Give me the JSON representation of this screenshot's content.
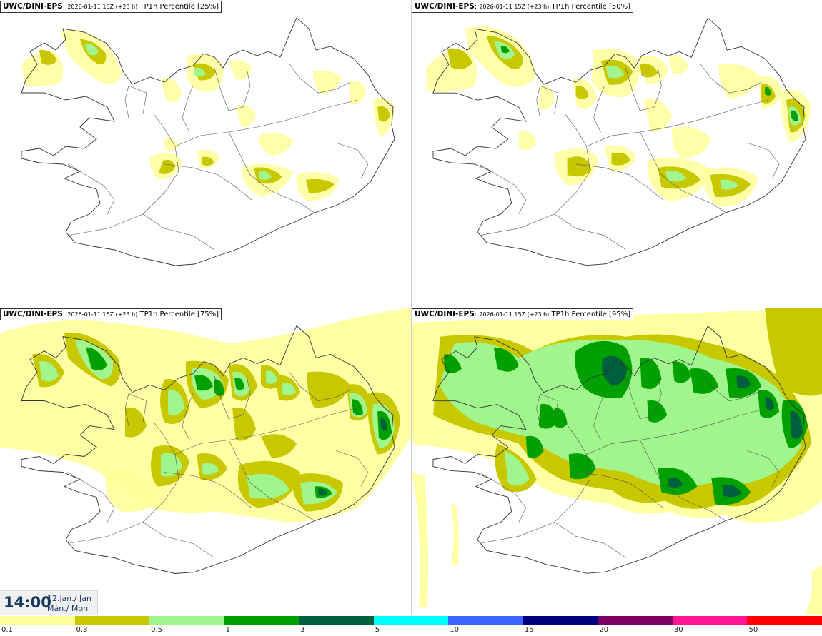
{
  "panels": [
    {
      "model": "UWC/DINI-EPS",
      "run": "2026-01-11 15Z (+23 h)",
      "param": "TP1h Percentile [25%]",
      "percentile": 25
    },
    {
      "model": "UWC/DINI-EPS",
      "run": "2026-01-11 15Z (+23 h)",
      "param": "TP1h Percentile [50%]",
      "percentile": 50
    },
    {
      "model": "UWC/DINI-EPS",
      "run": "2026-01-11 15Z (+23 h)",
      "param": "TP1h Percentile [75%]",
      "percentile": 75
    },
    {
      "model": "UWC/DINI-EPS",
      "run": "2026-01-11 15Z (+23 h)",
      "param": "TP1h Percentile [95%]",
      "percentile": 95
    }
  ],
  "valid_time": {
    "time": "14:00",
    "date_line1": "12.jan./ Jan",
    "date_line2": "Mán./ Mon"
  },
  "legend": {
    "labels": [
      "0.1",
      "0.3",
      "0.5",
      "1",
      "3",
      "5",
      "10",
      "15",
      "20",
      "30",
      "50"
    ],
    "colors": [
      "#ffff9a",
      "#c8c800",
      "#a0f58c",
      "#00a000",
      "#005f3c",
      "#00ffff",
      "#3c64ff",
      "#00007f",
      "#7f0064",
      "#ff1493",
      "#ff0000"
    ]
  }
}
